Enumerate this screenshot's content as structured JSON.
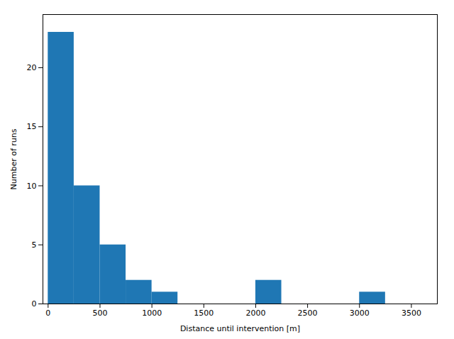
{
  "chart_data": {
    "type": "histogram",
    "bins": [
      0,
      250,
      500,
      750,
      1000,
      1250,
      1500,
      1750,
      2000,
      2250,
      2500,
      2750,
      3000,
      3250,
      3500
    ],
    "values": [
      23,
      10,
      5,
      2,
      1,
      0,
      0,
      0,
      2,
      0,
      0,
      0,
      1,
      0
    ],
    "color": "#1f77b4",
    "xlabel": "Distance until intervention [m]",
    "ylabel": "Number of runs",
    "xlim": [
      -50,
      3750
    ],
    "ylim": [
      0,
      24.5
    ],
    "xticks": [
      0,
      500,
      1000,
      1500,
      2000,
      2500,
      3000,
      3500
    ],
    "yticks": [
      0,
      5,
      10,
      15,
      20
    ],
    "grid": false
  }
}
